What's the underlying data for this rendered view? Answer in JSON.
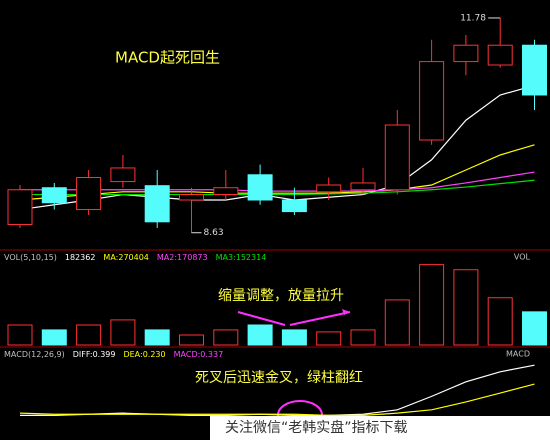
{
  "chart_data": [
    {
      "type": "candlestick",
      "title": "MACD起死回生",
      "open": [
        8.75,
        9.29,
        8.97,
        9.38,
        9.32,
        9.11,
        9.19,
        9.48,
        9.11,
        9.23,
        9.26,
        9.26,
        9.99,
        11.14,
        11.09,
        11.38
      ],
      "close": [
        9.26,
        9.07,
        9.44,
        9.58,
        8.79,
        9.19,
        9.29,
        9.11,
        8.94,
        9.33,
        9.36,
        10.21,
        11.14,
        11.38,
        11.38,
        10.65
      ],
      "high": [
        9.33,
        9.36,
        9.55,
        9.77,
        9.55,
        9.29,
        9.55,
        9.63,
        9.29,
        9.44,
        9.58,
        10.43,
        11.46,
        11.53,
        11.78,
        11.46
      ],
      "low": [
        8.7,
        8.97,
        8.89,
        9.29,
        8.7,
        8.63,
        9.11,
        9.04,
        8.89,
        9.11,
        9.19,
        9.19,
        9.92,
        10.94,
        11.05,
        10.43
      ],
      "up_color": "#ff3232",
      "down_color": "#54fcfc",
      "lines": [
        {
          "color": "#ffffff",
          "values": [
            8.97,
            9.04,
            9.11,
            9.19,
            9.15,
            9.11,
            9.11,
            9.19,
            9.11,
            9.15,
            9.19,
            9.33,
            9.7,
            10.28,
            10.65,
            10.79
          ]
        },
        {
          "color": "#ffff00",
          "values": [
            9.11,
            9.15,
            9.19,
            9.23,
            9.23,
            9.23,
            9.21,
            9.21,
            9.21,
            9.21,
            9.23,
            9.26,
            9.33,
            9.55,
            9.77,
            9.92
          ]
        },
        {
          "color": "#ff44ff",
          "values": [
            9.26,
            9.26,
            9.26,
            9.26,
            9.26,
            9.26,
            9.26,
            9.24,
            9.24,
            9.24,
            9.24,
            9.26,
            9.29,
            9.36,
            9.44,
            9.52
          ]
        },
        {
          "color": "#00e000",
          "values": [
            9.19,
            9.19,
            9.19,
            9.19,
            9.19,
            9.19,
            9.19,
            9.19,
            9.19,
            9.2,
            9.21,
            9.23,
            9.26,
            9.3,
            9.35,
            9.4
          ]
        }
      ],
      "ylim": [
        8.45,
        11.97
      ],
      "high_label": "11.78",
      "low_label": "8.63"
    },
    {
      "type": "bar",
      "header": [
        {
          "text": "VOL(5,10,15)",
          "color": "#c0c0c0"
        },
        {
          "text": "182362",
          "color": "#ffffff"
        },
        {
          "text": "MA:270404",
          "color": "#ffff00"
        },
        {
          "text": "MA2:170873",
          "color": "#ff44ff"
        },
        {
          "text": "MA3:152314",
          "color": "#00e000"
        }
      ],
      "header_right": "VOL",
      "annotation": "缩量调整，放量拉升",
      "values": [
        110000,
        83000,
        110000,
        138000,
        83000,
        55000,
        83000,
        110000,
        83000,
        72000,
        83000,
        248000,
        442000,
        414000,
        260000,
        182362
      ],
      "colors": [
        "#ff3232",
        "#54fcfc",
        "#ff3232",
        "#ff3232",
        "#54fcfc",
        "#ff3232",
        "#ff3232",
        "#54fcfc",
        "#54fcfc",
        "#ff3232",
        "#ff3232",
        "#ff3232",
        "#ff3232",
        "#ff3232",
        "#ff3232",
        "#54fcfc"
      ],
      "ylim": [
        0,
        456500
      ]
    },
    {
      "type": "line",
      "header": [
        {
          "text": "MACD(12,26,9)",
          "color": "#c0c0c0"
        },
        {
          "text": "DIFF:0.399",
          "color": "#ffffff"
        },
        {
          "text": "DEA:0.230",
          "color": "#ffff00"
        },
        {
          "text": "MACD:0.337",
          "color": "#ff44ff"
        }
      ],
      "header_right": "MACD",
      "annotation": "死叉后迅速金叉，绿柱翻红",
      "series": [
        {
          "color": "#ffffff",
          "values": [
            -0.05,
            -0.05,
            -0.04,
            -0.03,
            -0.04,
            -0.05,
            -0.05,
            -0.04,
            -0.05,
            -0.05,
            -0.04,
            0.0,
            0.12,
            0.25,
            0.34,
            0.399
          ]
        },
        {
          "color": "#ffff00",
          "values": [
            -0.03,
            -0.04,
            -0.04,
            -0.04,
            -0.04,
            -0.04,
            -0.04,
            -0.04,
            -0.04,
            -0.05,
            -0.05,
            -0.03,
            0.0,
            0.07,
            0.15,
            0.23
          ]
        }
      ],
      "ylim": [
        -0.27,
        0.49
      ]
    }
  ],
  "watermark": "关注微信“老韩实盘”指标下载"
}
